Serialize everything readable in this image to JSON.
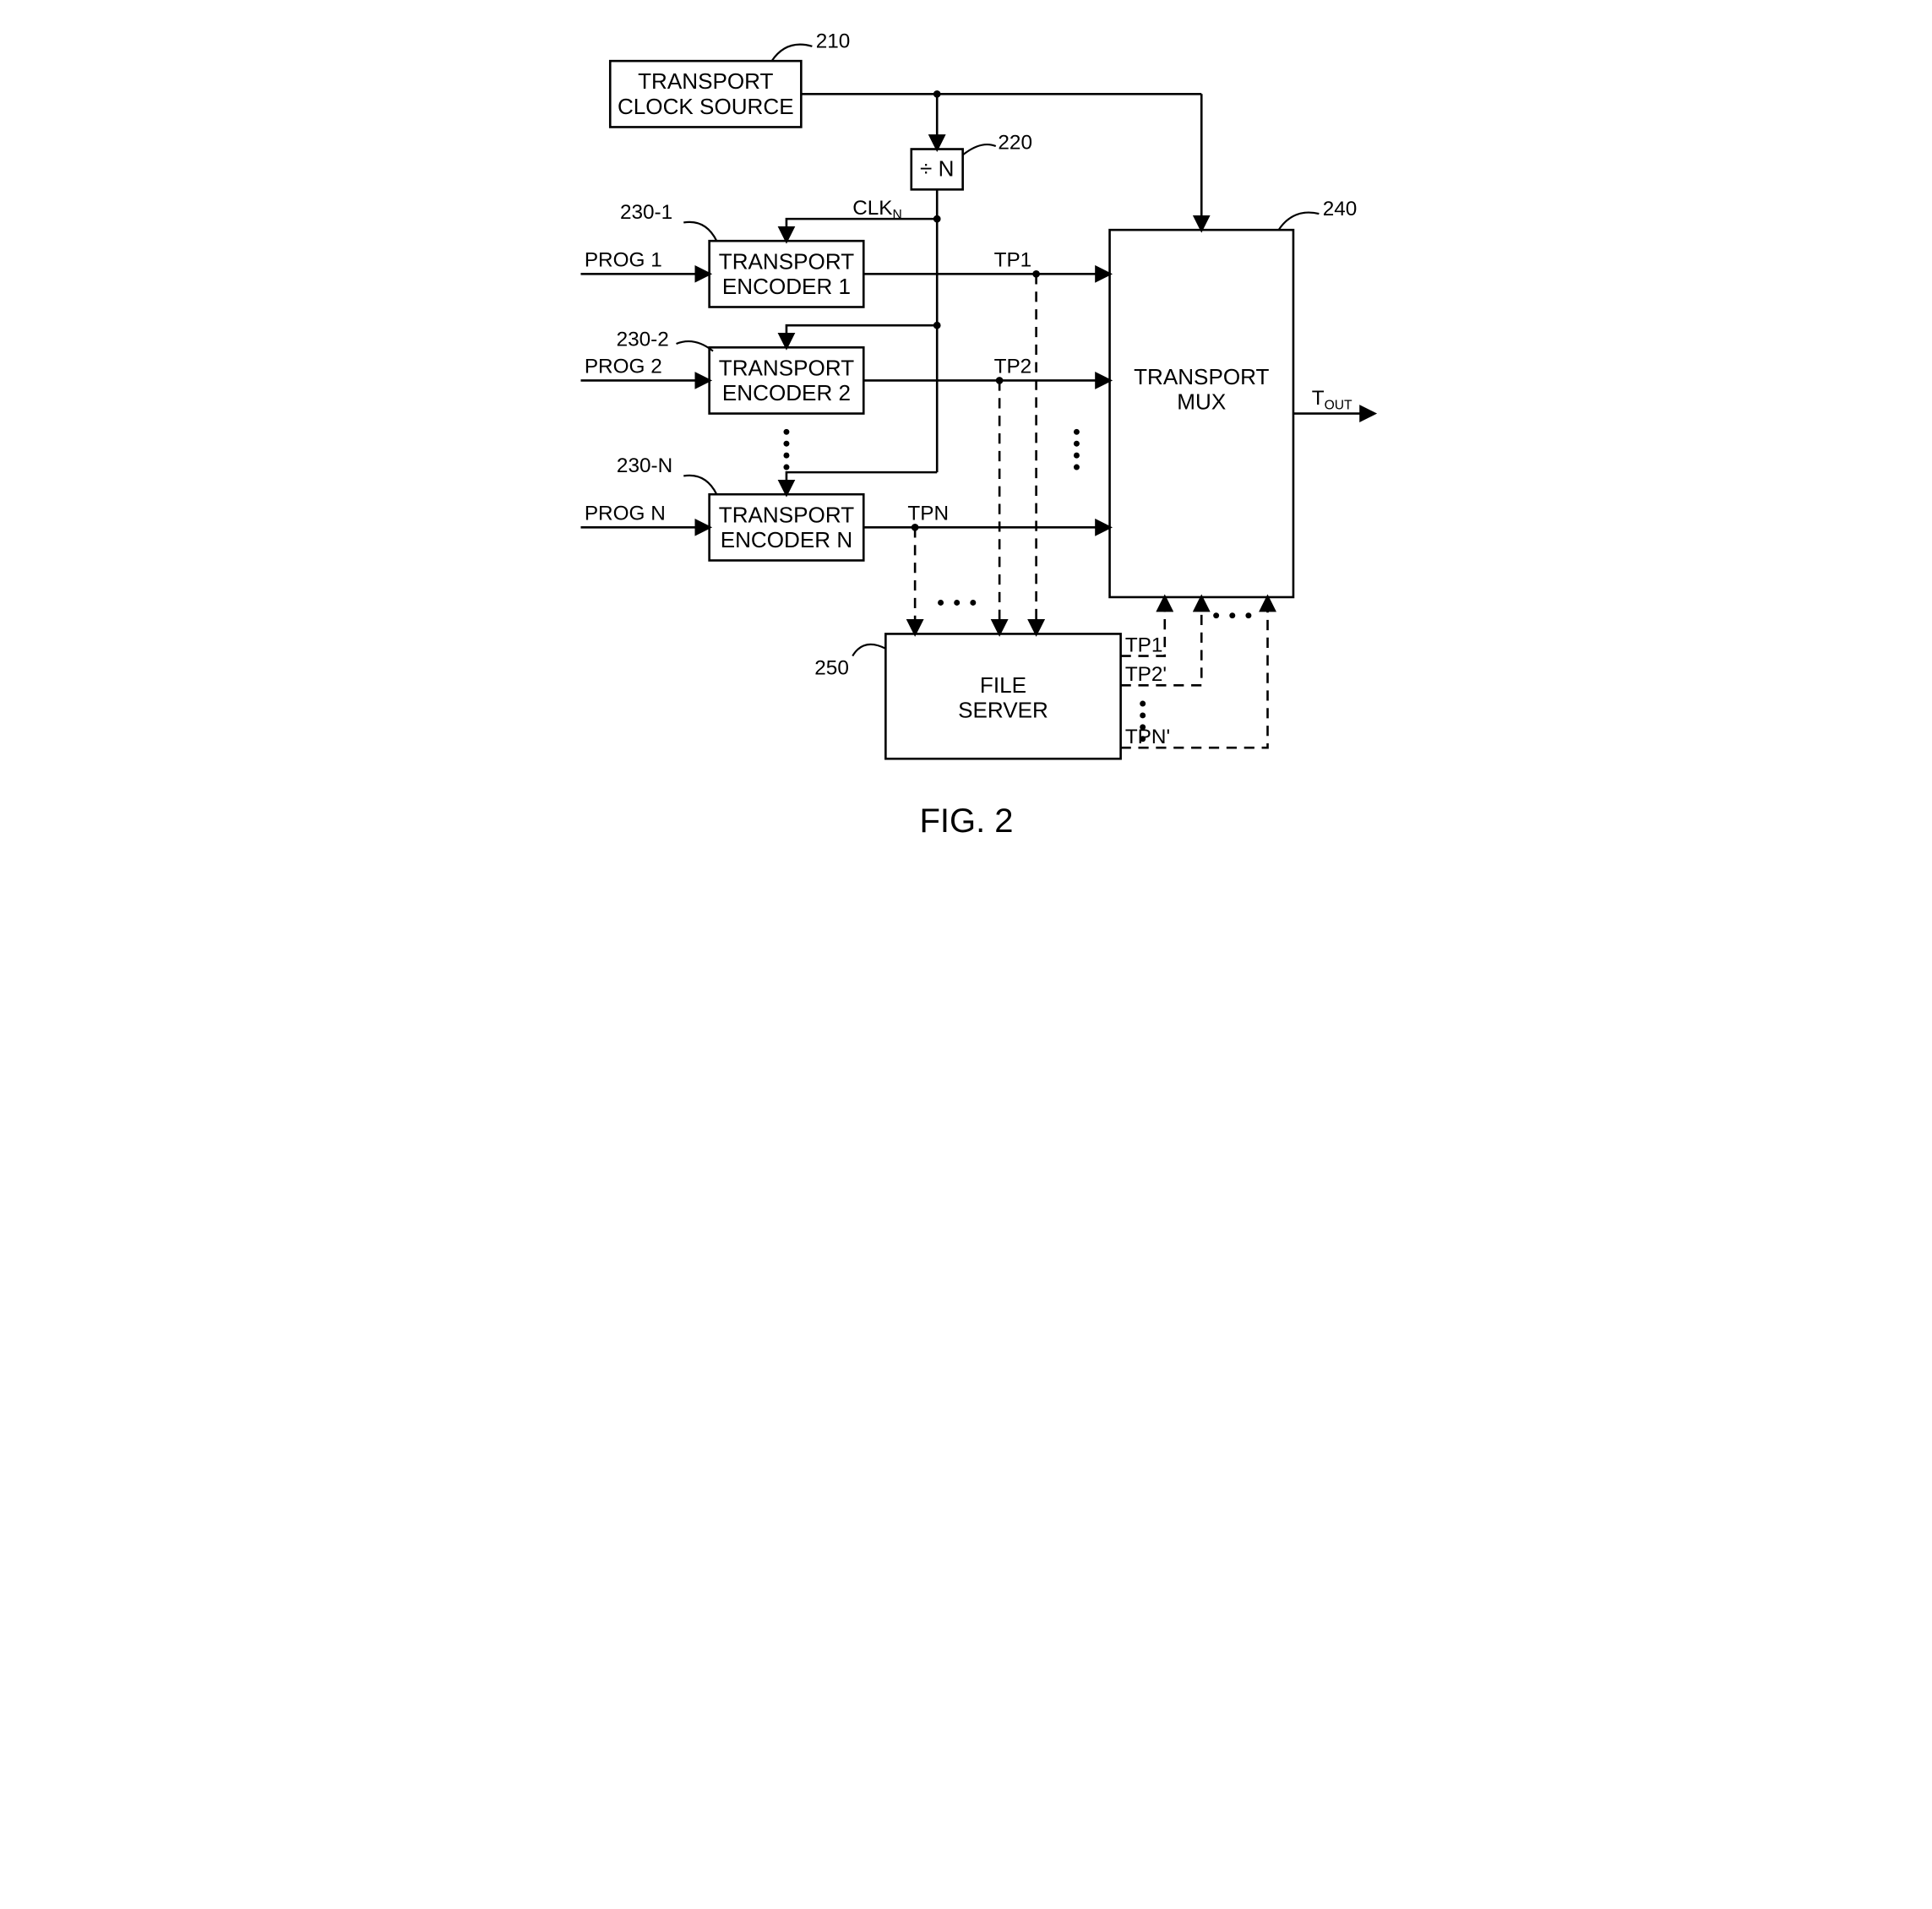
{
  "figure_label": "FIG. 2",
  "blocks": {
    "clock": {
      "ref": "210",
      "lines": [
        "TRANSPORT",
        "CLOCK SOURCE"
      ]
    },
    "divn": {
      "ref": "220",
      "label": "÷ N"
    },
    "enc1": {
      "ref": "230-1",
      "lines": [
        "TRANSPORT",
        "ENCODER 1"
      ]
    },
    "enc2": {
      "ref": "230-2",
      "lines": [
        "TRANSPORT",
        "ENCODER 2"
      ]
    },
    "encn": {
      "ref": "230-N",
      "lines": [
        "TRANSPORT",
        "ENCODER N"
      ]
    },
    "mux": {
      "ref": "240",
      "lines": [
        "TRANSPORT",
        "MUX"
      ]
    },
    "server": {
      "ref": "250",
      "lines": [
        "FILE",
        "SERVER"
      ]
    }
  },
  "signals": {
    "prog1": "PROG 1",
    "prog2": "PROG 2",
    "progn": "PROG N",
    "clkn": "CLK",
    "clkn_sub": "N",
    "tp1": "TP1",
    "tp2": "TP2",
    "tpn": "TPN",
    "tp1p": "TP1'",
    "tp2p": "TP2'",
    "tpnp": "TPN'",
    "tout": "T",
    "tout_sub": "OUT"
  },
  "style": {
    "viewbox_w": 1150,
    "viewbox_h": 1140,
    "stroke": "#000000",
    "stroke_w": 3,
    "dash": "14 10",
    "font": "Arial",
    "label_fs": 28,
    "fig_fs": 46,
    "bg": "#ffffff",
    "arrow_len": 18
  }
}
